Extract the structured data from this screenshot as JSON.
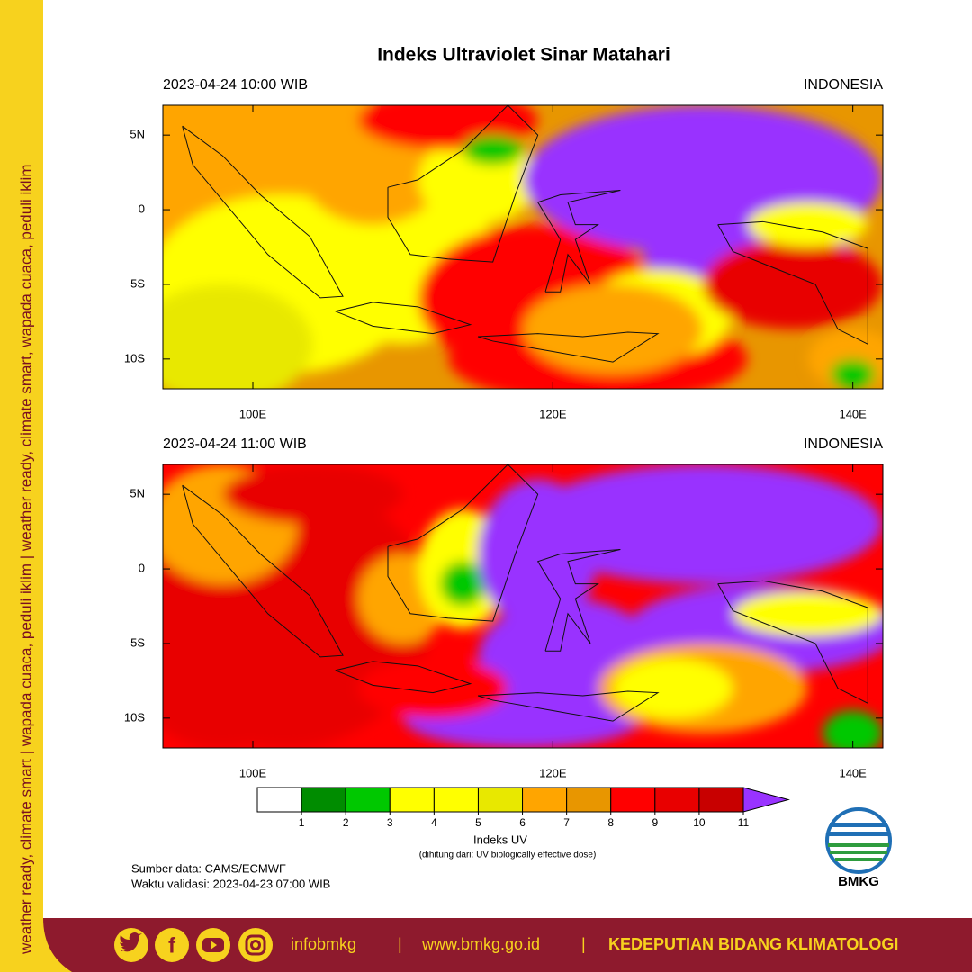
{
  "sidebar": "weather ready, climate smart | wapada cuaca, peduli iklim | weather ready, climate smart, wapada cuaca, peduli iklim",
  "title": "Indeks Ultraviolet Sinar Matahari",
  "map": {
    "lon_range": [
      94,
      142
    ],
    "lat_range": [
      -12,
      7
    ],
    "lon_ticks": [
      {
        "value": 100,
        "label": "100E"
      },
      {
        "value": 120,
        "label": "120E"
      },
      {
        "value": 140,
        "label": "140E"
      }
    ],
    "lat_ticks": [
      {
        "value": 5,
        "label": "5N"
      },
      0,
      {
        "value": -5,
        "label": "5S"
      },
      {
        "value": -10,
        "label": "10S"
      }
    ]
  },
  "panels": [
    {
      "time": "2023-04-24  10:00 WIB",
      "region": "INDONESIA"
    },
    {
      "time": "2023-04-24  11:00 WIB",
      "region": "INDONESIA"
    }
  ],
  "legend": {
    "title": "Indeks UV",
    "note": "(dihitung dari: UV biologically effective dose)",
    "ticks": [
      1,
      2,
      3,
      4,
      5,
      6,
      7,
      8,
      9,
      10,
      11
    ],
    "colors": [
      "#ffffff",
      "#008c00",
      "#00c800",
      "#ffff00",
      "#ffff00",
      "#e8e800",
      "#ffa500",
      "#e89600",
      "#ff0000",
      "#e80000",
      "#c80000",
      "#9933ff"
    ]
  },
  "source": {
    "data": "Sumber data: CAMS/ECMWF",
    "valid": "Waktu validasi: 2023-04-23 07:00 WIB"
  },
  "logo": "BMKG",
  "footer": {
    "handle": "infobmkg",
    "sep1": "|",
    "website": "www.bmkg.go.id",
    "sep2": "|",
    "unit": "KEDEPUTIAN BIDANG KLIMATOLOGI"
  }
}
